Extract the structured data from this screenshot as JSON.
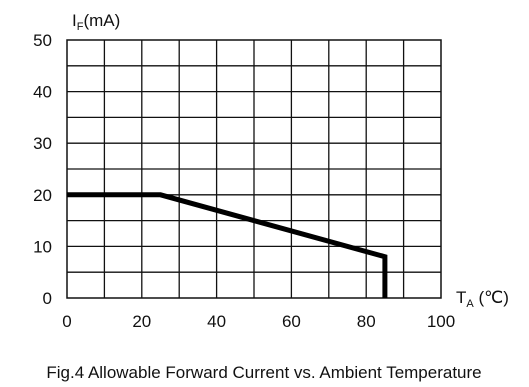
{
  "chart_data": {
    "type": "line",
    "caption": "Fig.4 Allowable Forward Current vs. Ambient Temperature",
    "ylabel": {
      "main": "I",
      "sub": "F",
      "rest": "(mA)"
    },
    "xlabel": {
      "main": "T",
      "sub": "A",
      "rest": " (℃)"
    },
    "xlim": [
      0,
      100
    ],
    "ylim": [
      0,
      50
    ],
    "x_ticks": [
      0,
      20,
      40,
      60,
      80,
      100
    ],
    "y_ticks": [
      0,
      10,
      20,
      30,
      40,
      50
    ],
    "x_grid_step": 10,
    "y_grid_step": 5,
    "grid": true,
    "series": [
      {
        "x": [
          0,
          25,
          85,
          85
        ],
        "y": [
          20,
          20,
          8,
          0
        ],
        "color": "#000000"
      }
    ]
  }
}
